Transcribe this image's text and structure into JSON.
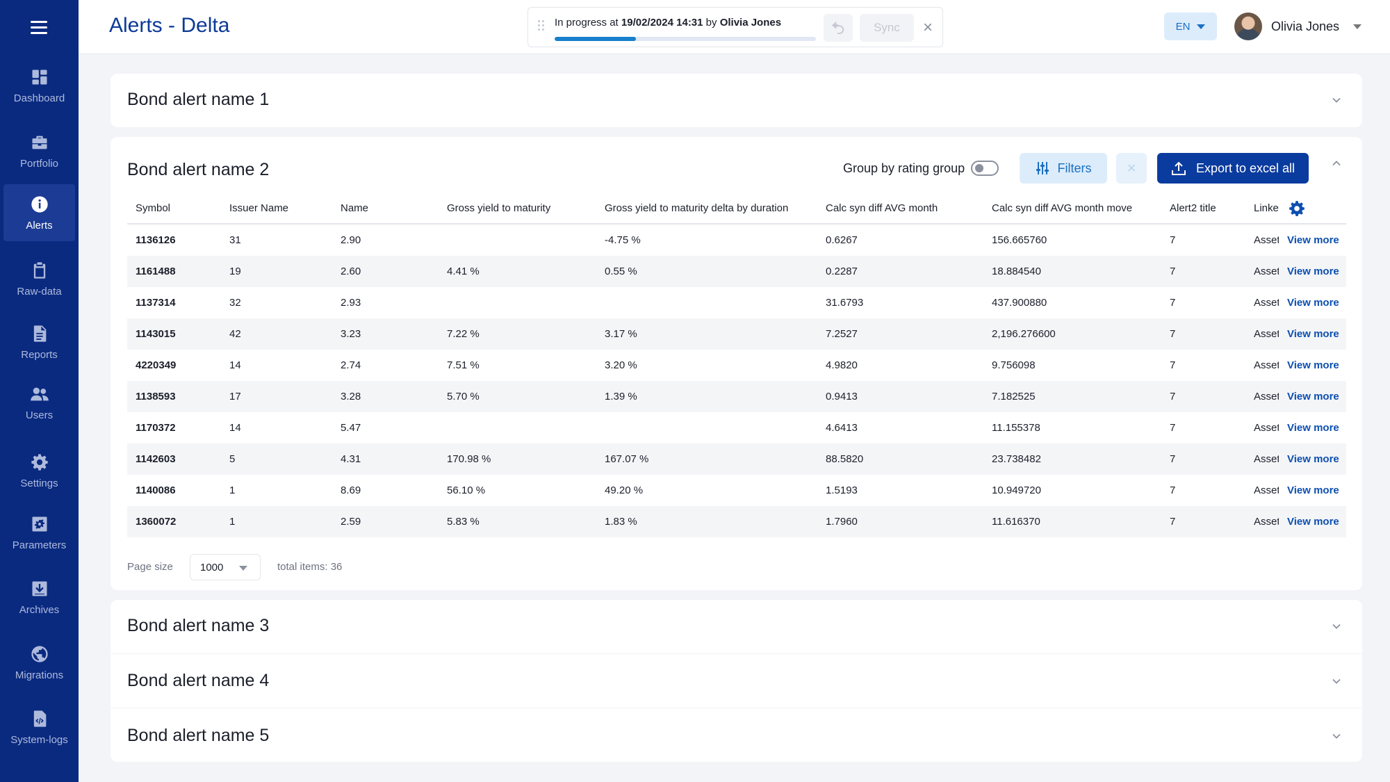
{
  "sidebar": {
    "items": [
      {
        "label": "Dashboard",
        "icon": "dashboard-icon"
      },
      {
        "label": "Portfolio",
        "icon": "briefcase-icon"
      },
      {
        "label": "Alerts",
        "icon": "info-icon",
        "active": true
      },
      {
        "label": "Raw-data",
        "icon": "clipboard-icon"
      },
      {
        "label": "Reports",
        "icon": "document-icon"
      },
      {
        "label": "Users",
        "icon": "users-icon"
      },
      {
        "label": "Settings",
        "icon": "gear-icon"
      },
      {
        "label": "Parameters",
        "icon": "parameters-icon"
      },
      {
        "label": "Archives",
        "icon": "archive-icon"
      },
      {
        "label": "Migrations",
        "icon": "globe-icon"
      },
      {
        "label": "System-logs",
        "icon": "code-file-icon"
      }
    ]
  },
  "header": {
    "title": "Alerts - Delta",
    "progress": {
      "prefix": "In progress at ",
      "datetime": "19/02/2024 14:31",
      "by": " by ",
      "user": "Olivia Jones",
      "fraction": 0.31
    },
    "sync_label": "Sync",
    "language": "EN",
    "user_name": "Olivia Jones"
  },
  "panels": [
    {
      "title": "Bond alert name 1"
    },
    {
      "title": "Bond alert name 2"
    },
    {
      "title": "Bond alert name 3"
    },
    {
      "title": "Bond alert name 4"
    },
    {
      "title": "Bond alert name 5"
    }
  ],
  "toolbar": {
    "group_label": "Group by rating group",
    "group_enabled": false,
    "filters_label": "Filters",
    "export_label": "Export to excel all"
  },
  "table": {
    "columns": [
      "Symbol",
      "Issuer Name",
      "Name",
      "Gross yield to maturity",
      "Gross yield to maturity delta by duration",
      "Calc syn diff AVG month",
      "Calc syn diff AVG month move",
      "Alert2 title",
      "Linke"
    ],
    "rows": [
      [
        "1136126",
        "31",
        "2.90",
        "",
        "-4.75 %",
        "0.6267",
        "156.665760",
        "7",
        "Asset"
      ],
      [
        "1161488",
        "19",
        "2.60",
        "4.41 %",
        "0.55 %",
        "0.2287",
        "18.884540",
        "7",
        "Asset"
      ],
      [
        "1137314",
        "32",
        "2.93",
        "",
        "",
        "31.6793",
        "437.900880",
        "7",
        "Asset"
      ],
      [
        "1143015",
        "42",
        "3.23",
        "7.22 %",
        "3.17 %",
        "7.2527",
        "2,196.276600",
        "7",
        "Asset"
      ],
      [
        "4220349",
        "14",
        "2.74",
        "7.51 %",
        "3.20 %",
        "4.9820",
        "9.756098",
        "7",
        "Asset"
      ],
      [
        "1138593",
        "17",
        "3.28",
        "5.70 %",
        "1.39 %",
        "0.9413",
        "7.182525",
        "7",
        "Asset"
      ],
      [
        "1170372",
        "14",
        "5.47",
        "",
        "",
        "4.6413",
        "11.155378",
        "7",
        "Asset"
      ],
      [
        "1142603",
        "5",
        "4.31",
        "170.98 %",
        "167.07 %",
        "88.5820",
        "23.738482",
        "7",
        "Asset"
      ],
      [
        "1140086",
        "1",
        "8.69",
        "56.10 %",
        "49.20 %",
        "1.5193",
        "10.949720",
        "7",
        "Asset"
      ],
      [
        "1360072",
        "1",
        "2.59",
        "5.83 %",
        "1.83 %",
        "1.7960",
        "11.616370",
        "7",
        "Asset"
      ]
    ],
    "view_more_label": "View more"
  },
  "pagination": {
    "page_size_label": "Page size",
    "page_size": "1000",
    "total_label": "total items: 36"
  },
  "colors": {
    "sidebar": "#0a2a80",
    "accent": "#0a3b9e",
    "title": "#0c3a98",
    "progress": "#1780cc"
  }
}
